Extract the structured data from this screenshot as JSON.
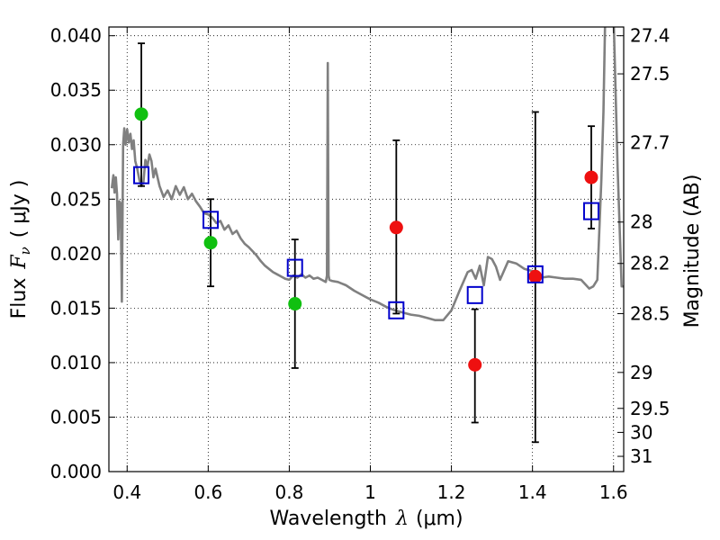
{
  "chart_data": {
    "type": "scatter",
    "xlabel_text": "Wavelength",
    "xlabel_symbol": "λ",
    "xlabel_unit": "(μm)",
    "ylabel_text": "Flux",
    "ylabel_symbol": "F",
    "ylabel_symbol_sub": "ν",
    "ylabel_unit": "( μJy )",
    "ylabel_right": "Magnitude (AB)",
    "xlim": [
      0.355,
      1.625
    ],
    "ylim": [
      0.0,
      0.0408
    ],
    "x_ticks": [
      0.4,
      0.6,
      0.8,
      1.0,
      1.2,
      1.4,
      1.6
    ],
    "x_tick_labels": [
      "0.4",
      "0.6",
      "0.8",
      "1",
      "1.2",
      "1.4",
      "1.6"
    ],
    "y_ticks": [
      0.0,
      0.005,
      0.01,
      0.015,
      0.02,
      0.025,
      0.03,
      0.035,
      0.04
    ],
    "y_tick_labels": [
      "0.000",
      "0.005",
      "0.010",
      "0.015",
      "0.020",
      "0.025",
      "0.030",
      "0.035",
      "0.040"
    ],
    "right_ticks": [
      {
        "flux": 0.04,
        "label": "27.4"
      },
      {
        "flux": 0.0365,
        "label": "27.5"
      },
      {
        "flux": 0.0302,
        "label": "27.7"
      },
      {
        "flux": 0.0229,
        "label": "28"
      },
      {
        "flux": 0.0191,
        "label": "28.2"
      },
      {
        "flux": 0.0145,
        "label": "28.5"
      },
      {
        "flux": 0.0091,
        "label": "29"
      },
      {
        "flux": 0.0058,
        "label": "29.5"
      },
      {
        "flux": 0.0036,
        "label": "30"
      },
      {
        "flux": 0.0014,
        "label": "31"
      }
    ],
    "grid": true,
    "colors": {
      "spectrum": "#808080",
      "green": "#10c010",
      "red": "#ee1010",
      "model": "#0000cc",
      "errorbar": "#000000"
    },
    "spectrum": {
      "x": [
        0.362,
        0.366,
        0.369,
        0.372,
        0.375,
        0.378,
        0.381,
        0.384,
        0.387,
        0.39,
        0.393,
        0.396,
        0.4,
        0.404,
        0.408,
        0.412,
        0.416,
        0.42,
        0.425,
        0.43,
        0.435,
        0.44,
        0.445,
        0.45,
        0.455,
        0.46,
        0.465,
        0.47,
        0.48,
        0.49,
        0.5,
        0.51,
        0.52,
        0.53,
        0.54,
        0.55,
        0.56,
        0.57,
        0.58,
        0.59,
        0.6,
        0.61,
        0.62,
        0.63,
        0.64,
        0.65,
        0.66,
        0.67,
        0.68,
        0.69,
        0.7,
        0.71,
        0.72,
        0.73,
        0.74,
        0.75,
        0.76,
        0.77,
        0.78,
        0.79,
        0.8,
        0.81,
        0.82,
        0.83,
        0.84,
        0.85,
        0.86,
        0.87,
        0.88,
        0.89,
        0.893,
        0.895,
        0.897,
        0.899,
        0.905,
        0.92,
        0.94,
        0.96,
        0.98,
        1.0,
        1.02,
        1.04,
        1.06,
        1.08,
        1.1,
        1.12,
        1.14,
        1.16,
        1.18,
        1.2,
        1.22,
        1.24,
        1.25,
        1.26,
        1.27,
        1.28,
        1.29,
        1.3,
        1.31,
        1.32,
        1.34,
        1.36,
        1.38,
        1.4,
        1.42,
        1.44,
        1.46,
        1.48,
        1.5,
        1.52,
        1.54,
        1.55,
        1.56,
        1.57,
        1.575,
        1.58,
        1.585,
        1.59,
        1.6,
        1.61,
        1.62,
        1.625
      ],
      "y": [
        0.026,
        0.0272,
        0.0256,
        0.027,
        0.0255,
        0.0213,
        0.0248,
        0.0246,
        0.0156,
        0.03,
        0.0315,
        0.03,
        0.0314,
        0.0302,
        0.031,
        0.0296,
        0.0304,
        0.0285,
        0.0278,
        0.0268,
        0.0262,
        0.0265,
        0.0286,
        0.028,
        0.0291,
        0.0285,
        0.027,
        0.0278,
        0.0262,
        0.0252,
        0.0258,
        0.025,
        0.0262,
        0.0254,
        0.0261,
        0.025,
        0.0255,
        0.0248,
        0.0243,
        0.0237,
        0.0236,
        0.0233,
        0.0228,
        0.023,
        0.0222,
        0.0226,
        0.0218,
        0.0221,
        0.0214,
        0.0209,
        0.0206,
        0.0202,
        0.0198,
        0.0193,
        0.0189,
        0.0186,
        0.0183,
        0.0181,
        0.0179,
        0.0177,
        0.0176,
        0.018,
        0.0178,
        0.0181,
        0.0178,
        0.018,
        0.0177,
        0.0178,
        0.0176,
        0.0174,
        0.018,
        0.0375,
        0.018,
        0.0176,
        0.0175,
        0.0174,
        0.0171,
        0.0166,
        0.0162,
        0.0158,
        0.0155,
        0.0151,
        0.0148,
        0.0146,
        0.0144,
        0.0143,
        0.0141,
        0.0139,
        0.0139,
        0.0148,
        0.0166,
        0.0183,
        0.0185,
        0.0177,
        0.0189,
        0.0171,
        0.0197,
        0.0195,
        0.0188,
        0.0176,
        0.0193,
        0.0191,
        0.0186,
        0.0184,
        0.0178,
        0.0179,
        0.0178,
        0.0177,
        0.0177,
        0.0176,
        0.0168,
        0.017,
        0.0176,
        0.0268,
        0.033,
        0.043,
        0.047,
        0.048,
        0.042,
        0.028,
        0.017,
        0.017
      ]
    },
    "green_points": [
      {
        "x": 0.435,
        "y": 0.0328
      },
      {
        "x": 0.606,
        "y": 0.021
      },
      {
        "x": 0.814,
        "y": 0.0154
      }
    ],
    "red_points": [
      {
        "x": 1.064,
        "y": 0.0224
      },
      {
        "x": 1.258,
        "y": 0.0098
      },
      {
        "x": 1.407,
        "y": 0.0179
      },
      {
        "x": 1.545,
        "y": 0.027
      }
    ],
    "model_points": [
      {
        "x": 0.435,
        "y": 0.0272
      },
      {
        "x": 0.606,
        "y": 0.0231
      },
      {
        "x": 0.814,
        "y": 0.0187
      },
      {
        "x": 1.064,
        "y": 0.0148
      },
      {
        "x": 1.258,
        "y": 0.0162
      },
      {
        "x": 1.407,
        "y": 0.0181
      },
      {
        "x": 1.545,
        "y": 0.0239
      }
    ],
    "error_bars": [
      {
        "x": 0.435,
        "low": 0.0262,
        "high": 0.0393
      },
      {
        "x": 0.606,
        "low": 0.017,
        "high": 0.025
      },
      {
        "x": 0.814,
        "low": 0.0095,
        "high": 0.0213
      },
      {
        "x": 1.064,
        "low": 0.0145,
        "high": 0.0304
      },
      {
        "x": 1.258,
        "low": 0.0045,
        "high": 0.0149
      },
      {
        "x": 1.407,
        "low": 0.0027,
        "high": 0.033
      },
      {
        "x": 1.545,
        "low": 0.0223,
        "high": 0.0317
      }
    ]
  }
}
